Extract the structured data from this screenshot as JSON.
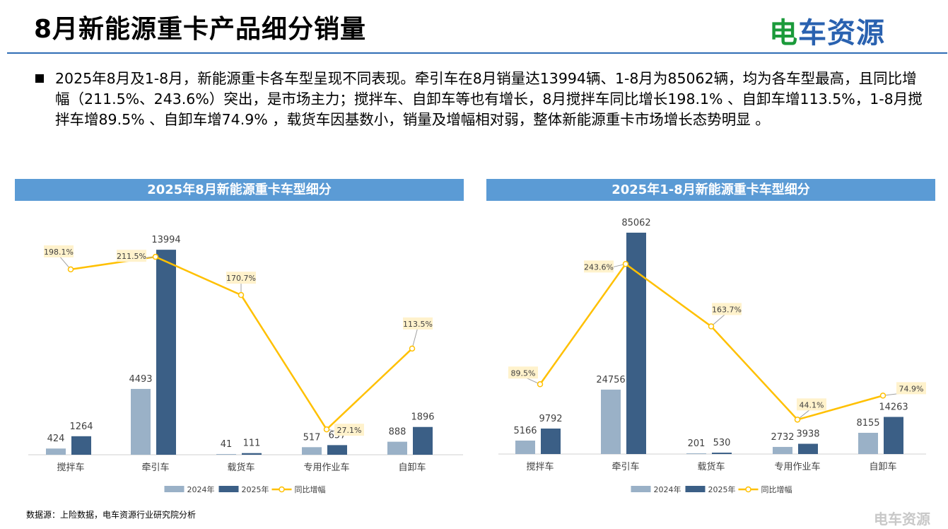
{
  "header": {
    "title": "8月新能源重卡产品细分销量",
    "logo": "电车资源"
  },
  "summary": "2025年8月及1-8月，新能源重卡各车型呈现不同表现。牵引车在8月销量达13994辆、1-8月为85062辆，均为各车型最高，且同比增幅（211.5%、243.6%）突出，是市场主力；搅拌车、自卸车等也有增长，8月搅拌车同比增长198.1% 、自卸车增113.5%，1-8月搅拌车增89.5% 、自卸车增74.9% ，载货车因基数小，销量及增幅相对弱，整体新能源重卡市场增长态势明显 。",
  "footer": {
    "source": "数据源：上险数据，电车资源行业研究院分析",
    "watermark": "电车资源"
  },
  "colors": {
    "bar2024": "#9ab1c7",
    "bar2025": "#3b5f86",
    "line": "#ffc000",
    "header": "#5b9bd5"
  },
  "chart_data": [
    {
      "type": "bar+line",
      "title": "2025年8月新能源重卡车型细分",
      "categories": [
        "搅拌车",
        "牵引车",
        "载货车",
        "专用作业车",
        "自卸车"
      ],
      "series": [
        {
          "name": "2024年",
          "values": [
            424,
            4493,
            41,
            517,
            888
          ]
        },
        {
          "name": "2025年",
          "values": [
            1264,
            13994,
            111,
            657,
            1896
          ]
        },
        {
          "name": "同比增幅",
          "values": [
            198.1,
            211.5,
            170.7,
            27.1,
            113.5
          ],
          "unit": "%"
        }
      ],
      "legend": "bottom"
    },
    {
      "type": "bar+line",
      "title": "2025年1-8月新能源重卡车型细分",
      "categories": [
        "搅拌车",
        "牵引车",
        "载货车",
        "专用作业车",
        "自卸车"
      ],
      "series": [
        {
          "name": "2024年",
          "values": [
            5166,
            24756,
            201,
            2732,
            8155
          ]
        },
        {
          "name": "2025年",
          "values": [
            9792,
            85062,
            530,
            3938,
            14263
          ]
        },
        {
          "name": "同比增幅",
          "values": [
            89.5,
            243.6,
            163.7,
            44.1,
            74.9
          ],
          "unit": "%"
        }
      ],
      "legend": "bottom"
    }
  ]
}
